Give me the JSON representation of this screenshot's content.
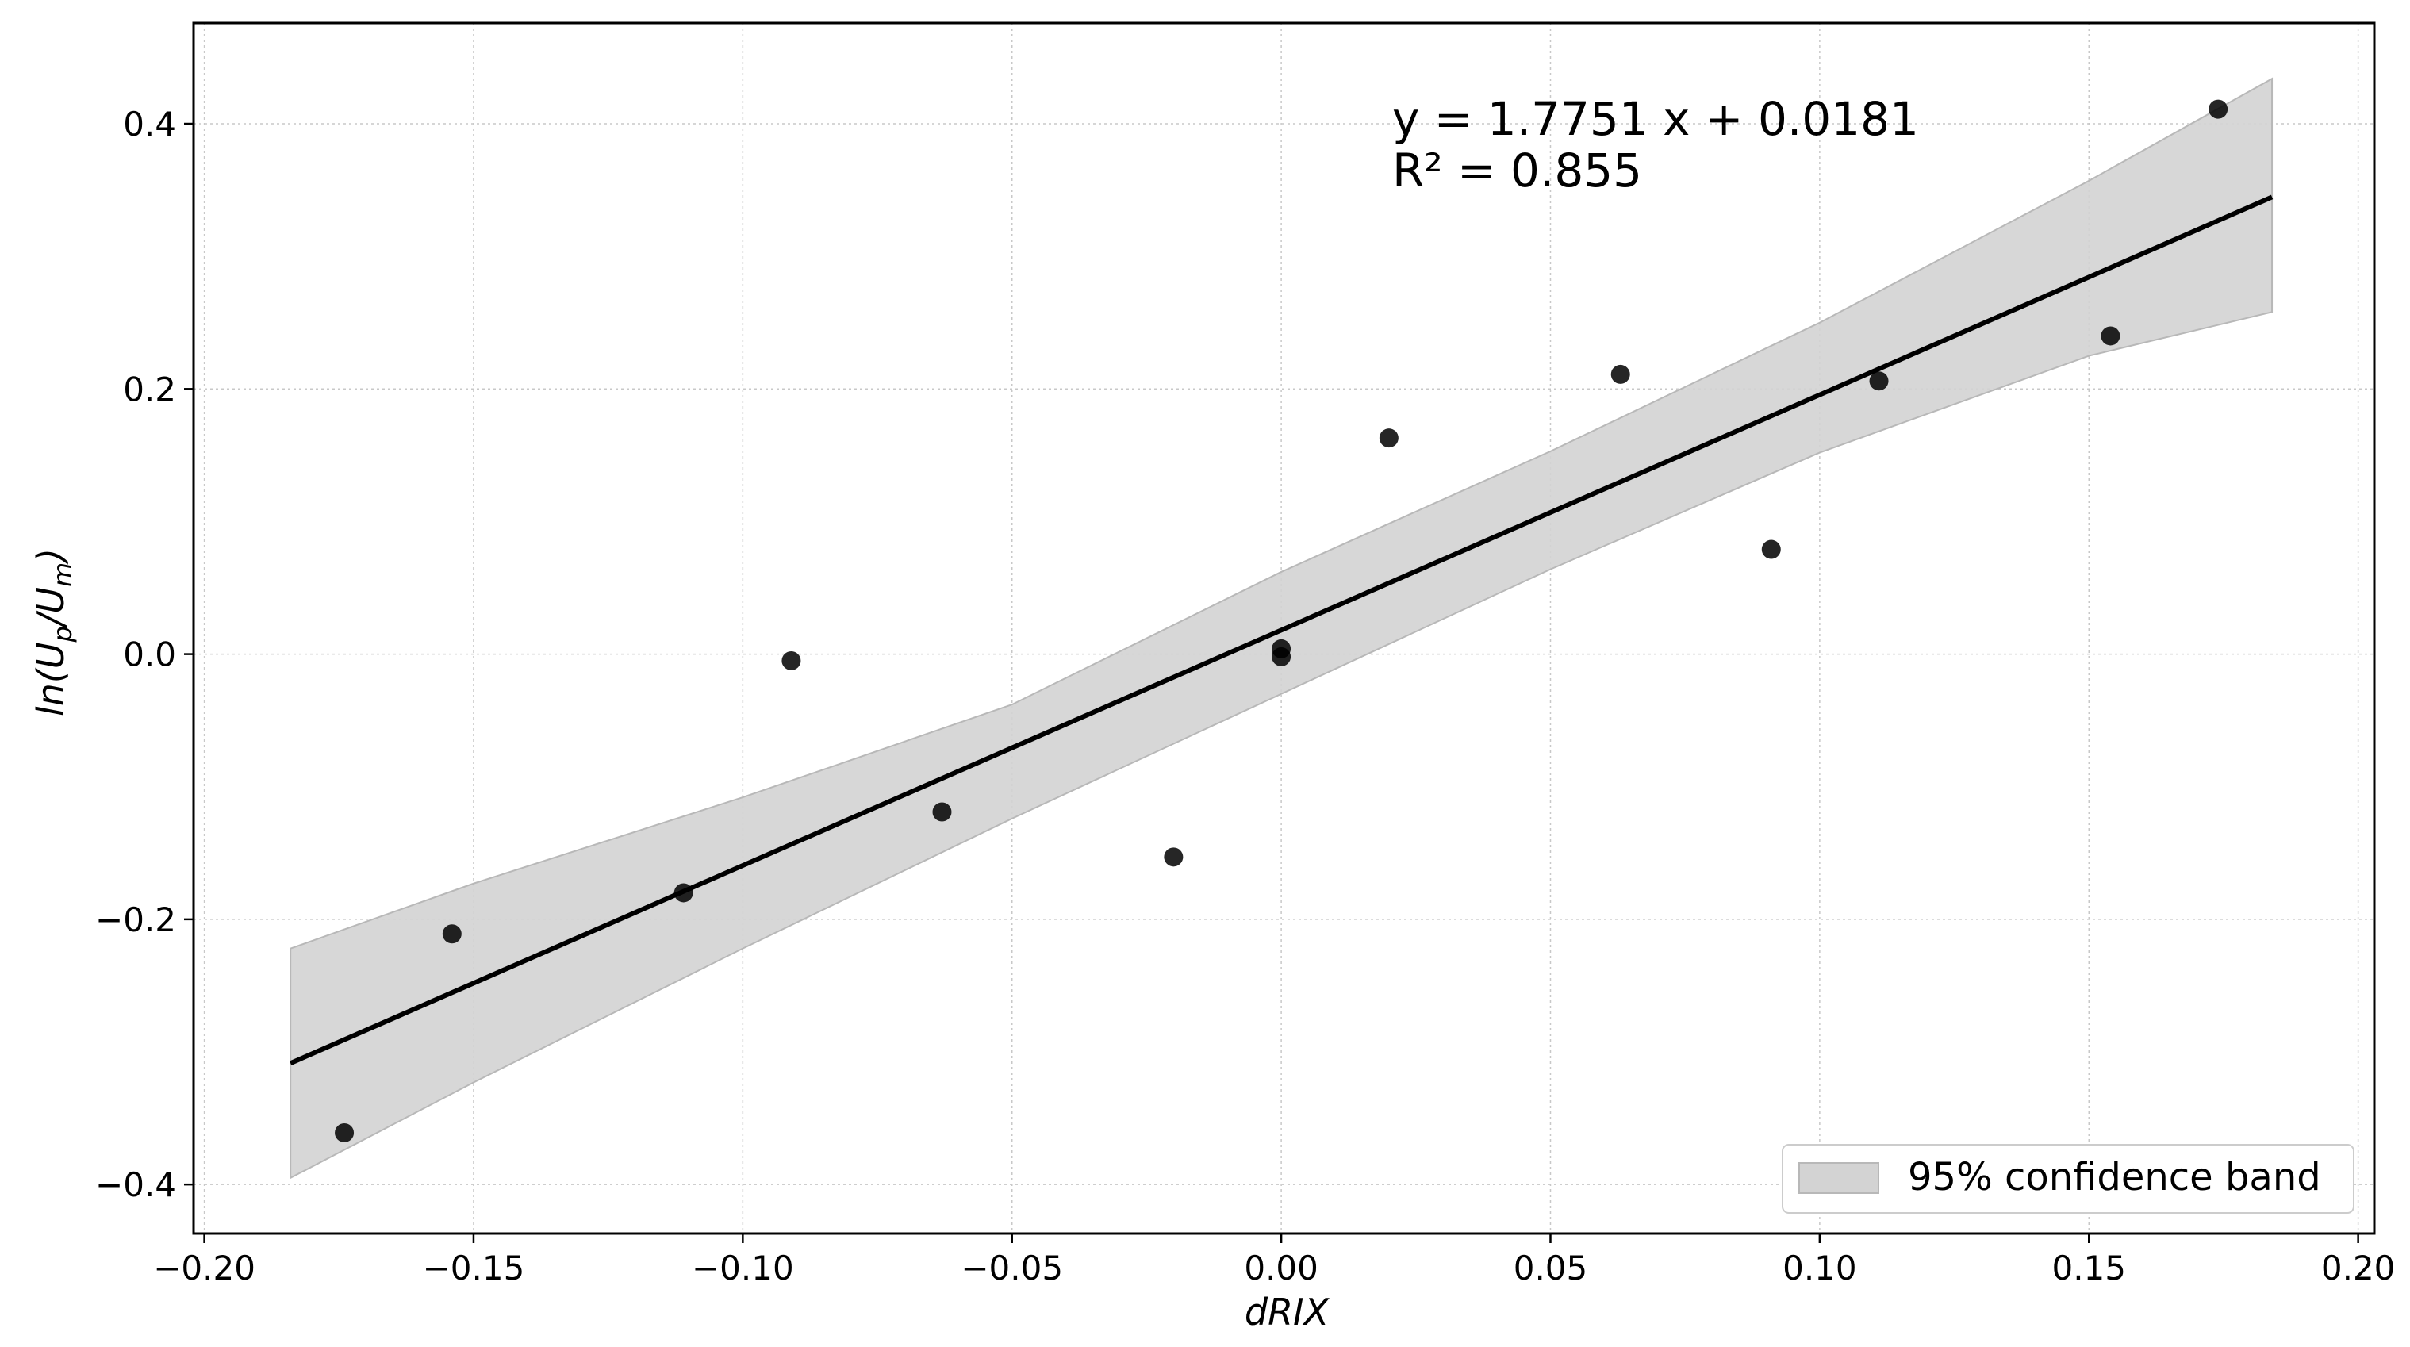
{
  "chart_data": {
    "type": "scatter",
    "xlabel": "dRIX",
    "ylabel": "ln(U_p/U_m)",
    "ylabel_parts": {
      "ln": "ln(",
      "u1": "U",
      "sub1": "p",
      "slash": "/",
      "u2": "U",
      "sub2": "m",
      "close": ")"
    },
    "xlim": [
      -0.202,
      0.203
    ],
    "ylim": [
      -0.437,
      0.476
    ],
    "grid": true,
    "legend_position": "lower-right",
    "xticks": [
      -0.2,
      -0.15,
      -0.1,
      -0.05,
      0.0,
      0.05,
      0.1,
      0.15,
      0.2
    ],
    "xtick_labels": [
      "−0.20",
      "−0.15",
      "−0.10",
      "−0.05",
      "0.00",
      "0.05",
      "0.10",
      "0.15",
      "0.20"
    ],
    "yticks": [
      -0.4,
      -0.2,
      0.0,
      0.2,
      0.4
    ],
    "ytick_labels": [
      "−0.4",
      "−0.2",
      "0.0",
      "0.2",
      "0.4"
    ],
    "points": [
      {
        "x": -0.174,
        "y": -0.361
      },
      {
        "x": -0.154,
        "y": -0.211
      },
      {
        "x": -0.111,
        "y": -0.18
      },
      {
        "x": -0.091,
        "y": -0.005
      },
      {
        "x": -0.063,
        "y": -0.119
      },
      {
        "x": -0.02,
        "y": -0.153
      },
      {
        "x": 0.0,
        "y": 0.004
      },
      {
        "x": 0.0,
        "y": -0.002
      },
      {
        "x": 0.02,
        "y": 0.163
      },
      {
        "x": 0.063,
        "y": 0.211
      },
      {
        "x": 0.091,
        "y": 0.079
      },
      {
        "x": 0.111,
        "y": 0.206
      },
      {
        "x": 0.154,
        "y": 0.24
      },
      {
        "x": 0.174,
        "y": 0.411
      }
    ],
    "fit": {
      "slope": 1.7751,
      "intercept": 0.0181,
      "x_range": [
        -0.184,
        0.184
      ]
    },
    "confidence_band": {
      "x": [
        -0.184,
        -0.15,
        -0.1,
        -0.05,
        0.0,
        0.05,
        0.1,
        0.15,
        0.184
      ],
      "lower": [
        -0.395,
        -0.323,
        -0.222,
        -0.124,
        -0.03,
        0.064,
        0.152,
        0.225,
        0.258
      ],
      "upper": [
        -0.222,
        -0.173,
        -0.108,
        -0.038,
        0.062,
        0.153,
        0.25,
        0.357,
        0.434
      ]
    },
    "legend": [
      {
        "label": "95% confidence band",
        "color": "#d3d3d3"
      }
    ],
    "annotations": {
      "equation": "y = 1.7751 x + 0.0181",
      "r2": "R² = 0.855"
    },
    "colors": {
      "points": "#000000",
      "fit_line": "#000000",
      "band": "#d3d3d3",
      "band_edge": "#b8b8b8",
      "grid": "#c8c8c8"
    }
  }
}
